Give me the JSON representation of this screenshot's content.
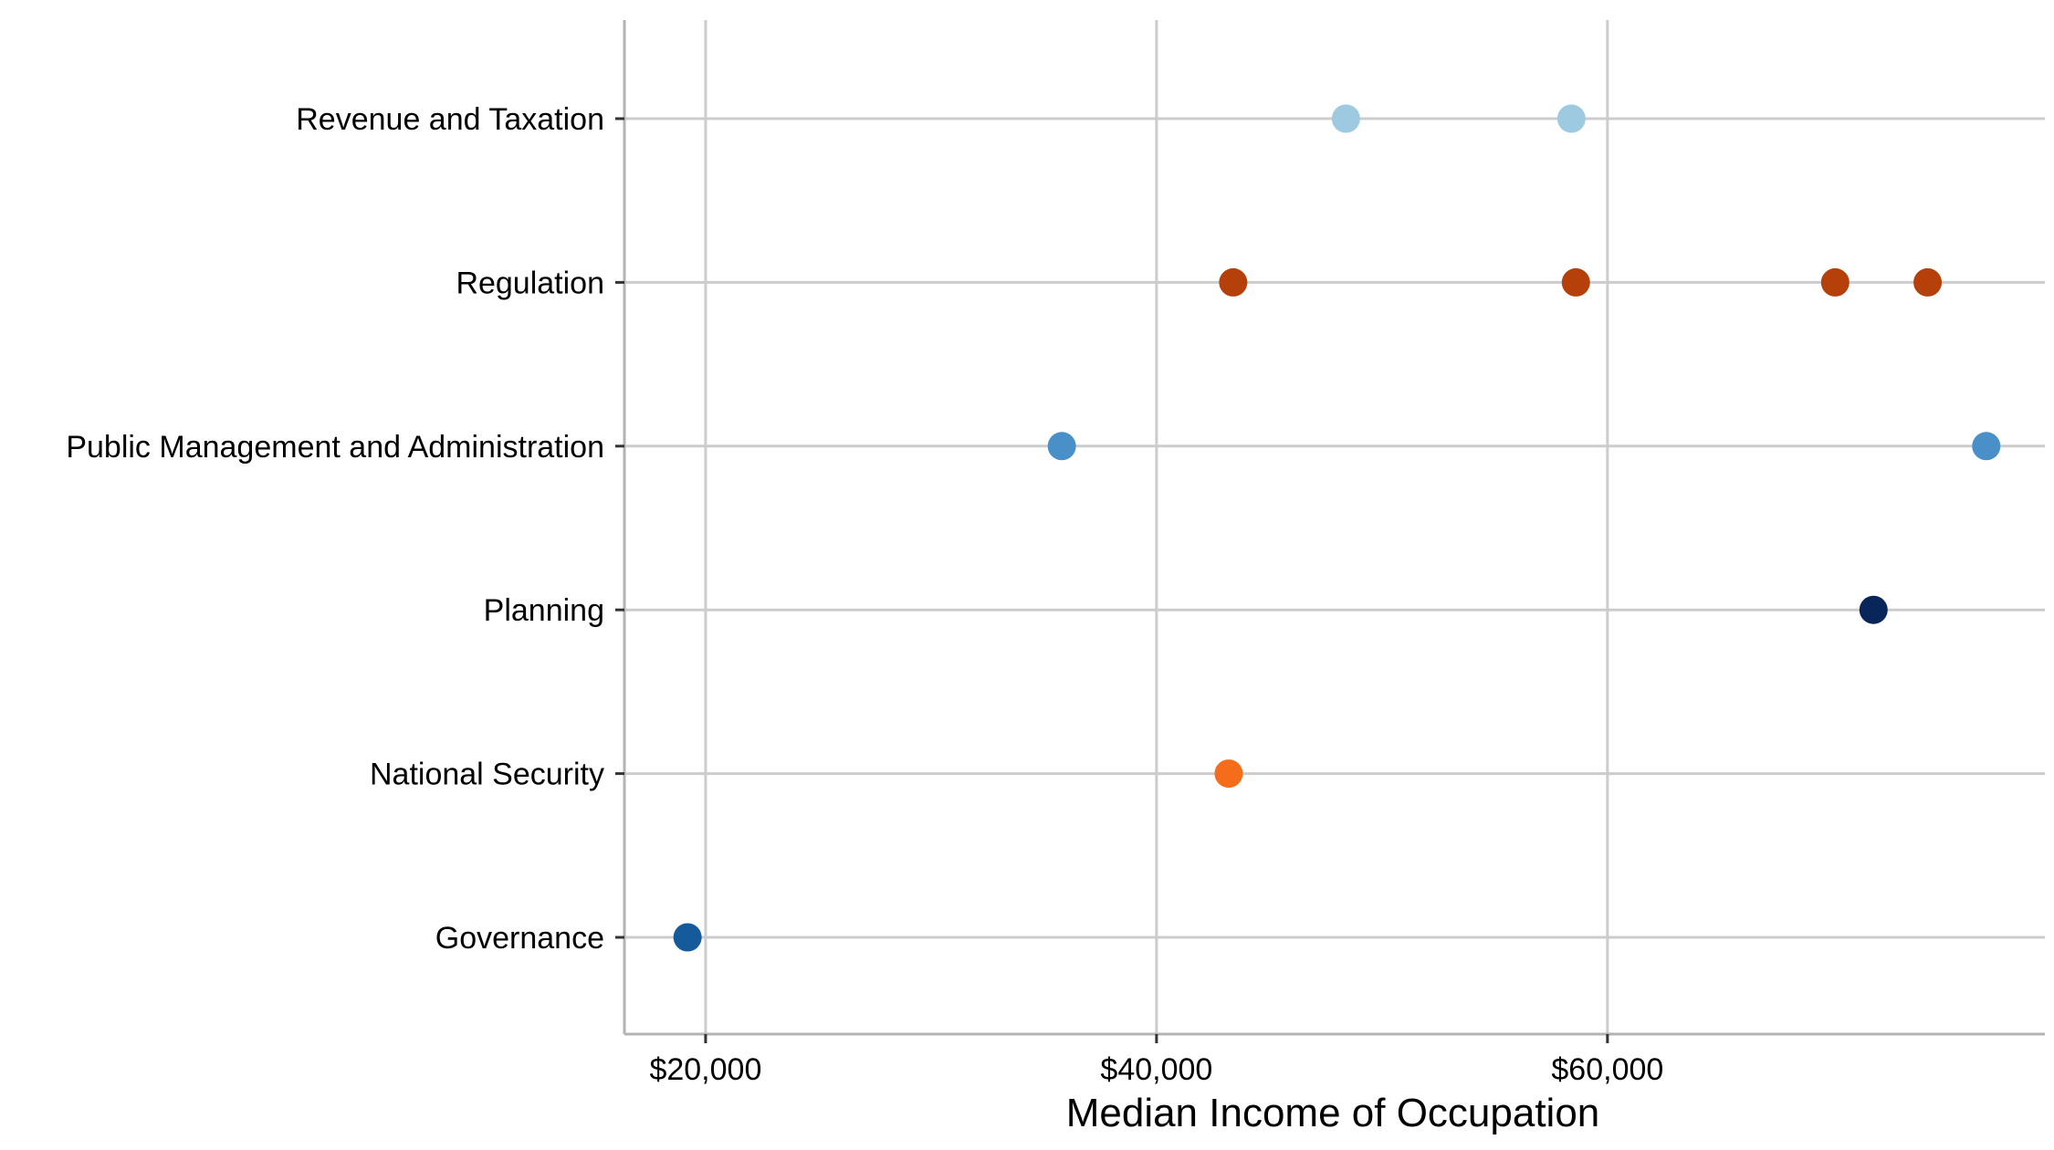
{
  "chart_data": {
    "type": "scatter",
    "title": "",
    "xlabel": "Median Income of Occupation",
    "ylabel": "",
    "xlim": [
      16400,
      79400
    ],
    "x_ticks": [
      {
        "value": 20000,
        "label": "$20,000"
      },
      {
        "value": 40000,
        "label": "$40,000"
      },
      {
        "value": 60000,
        "label": "$60,000"
      }
    ],
    "categories": [
      "Revenue and Taxation",
      "Regulation",
      "Public Management and Administration",
      "Planning",
      "National Security",
      "Governance"
    ],
    "grid": true,
    "legend": "none",
    "series": [
      {
        "category": "Revenue and Taxation",
        "color": "#9ecae1",
        "values": [
          48400,
          58400
        ]
      },
      {
        "category": "Regulation",
        "color": "#b5400a",
        "values": [
          43400,
          58600,
          70100,
          74200
        ]
      },
      {
        "category": "Public Management and Administration",
        "color": "#4a90c8",
        "values": [
          35800,
          76800
        ]
      },
      {
        "category": "Planning",
        "color": "#08265a",
        "values": [
          71800
        ]
      },
      {
        "category": "National Security",
        "color": "#f56d1a",
        "values": [
          43200
        ]
      },
      {
        "category": "Governance",
        "color": "#155b9c",
        "values": [
          19200
        ]
      }
    ]
  }
}
